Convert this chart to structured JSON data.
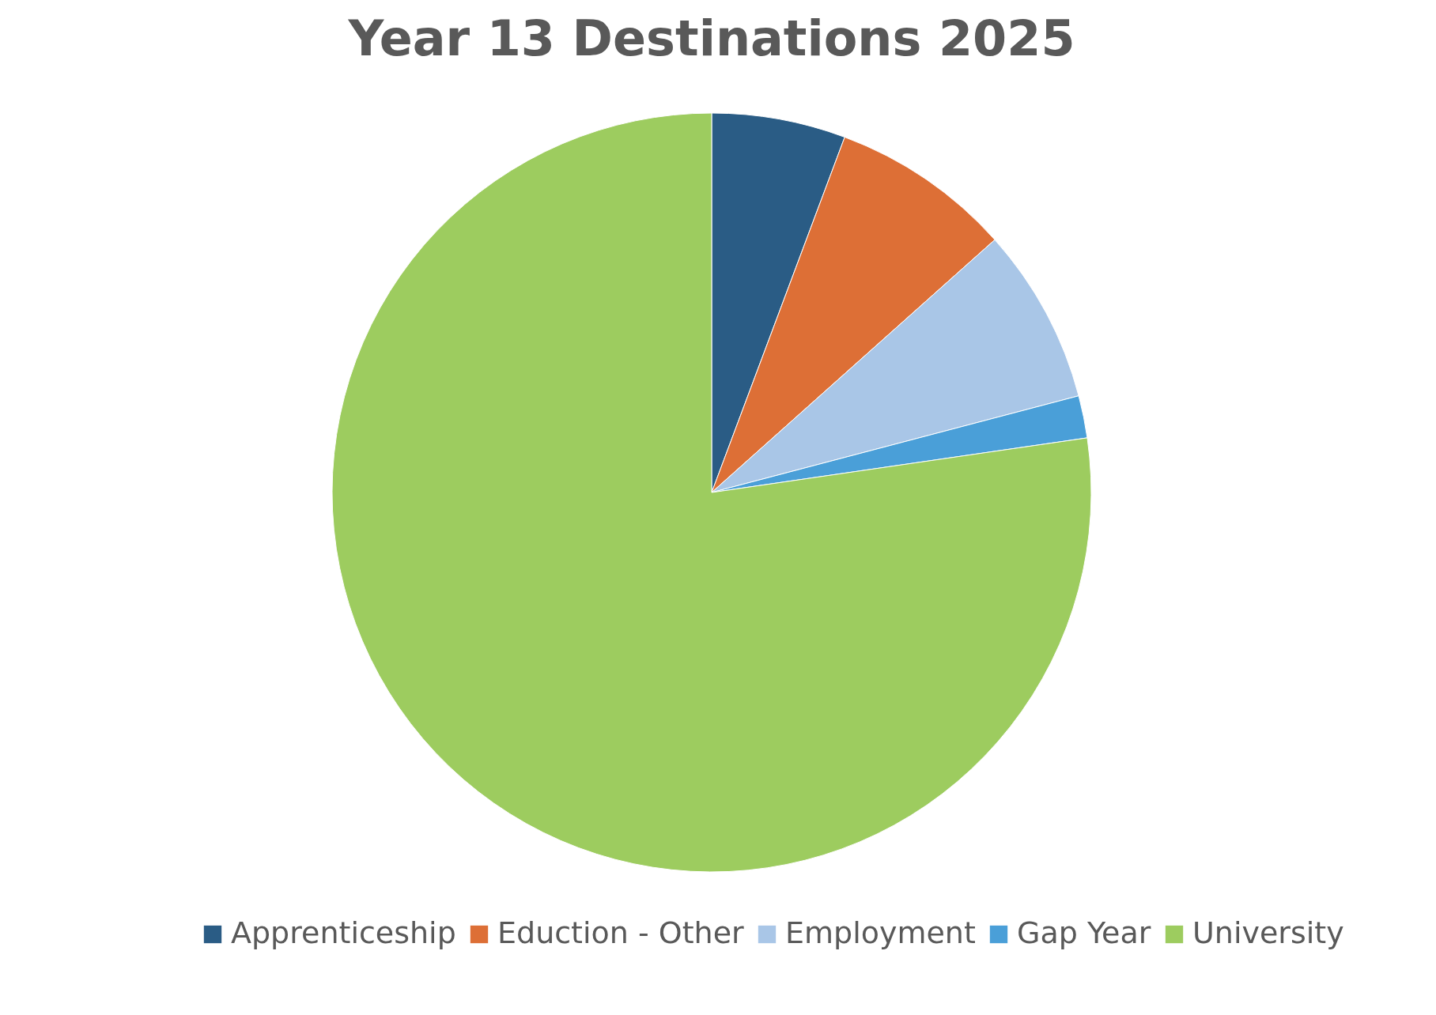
{
  "chart_data": {
    "type": "pie",
    "title": "Year 13 Destinations 2025",
    "categories": [
      "Apprenticeship",
      "Eduction - Other",
      "Employment",
      "Gap Year",
      "University"
    ],
    "values": [
      5.7,
      7.7,
      7.5,
      1.8,
      77.3
    ],
    "colors": [
      "#2a5c85",
      "#dd6f36",
      "#a9c6e7",
      "#4a9fd8",
      "#9dcc5f"
    ],
    "legend": "bottom"
  }
}
